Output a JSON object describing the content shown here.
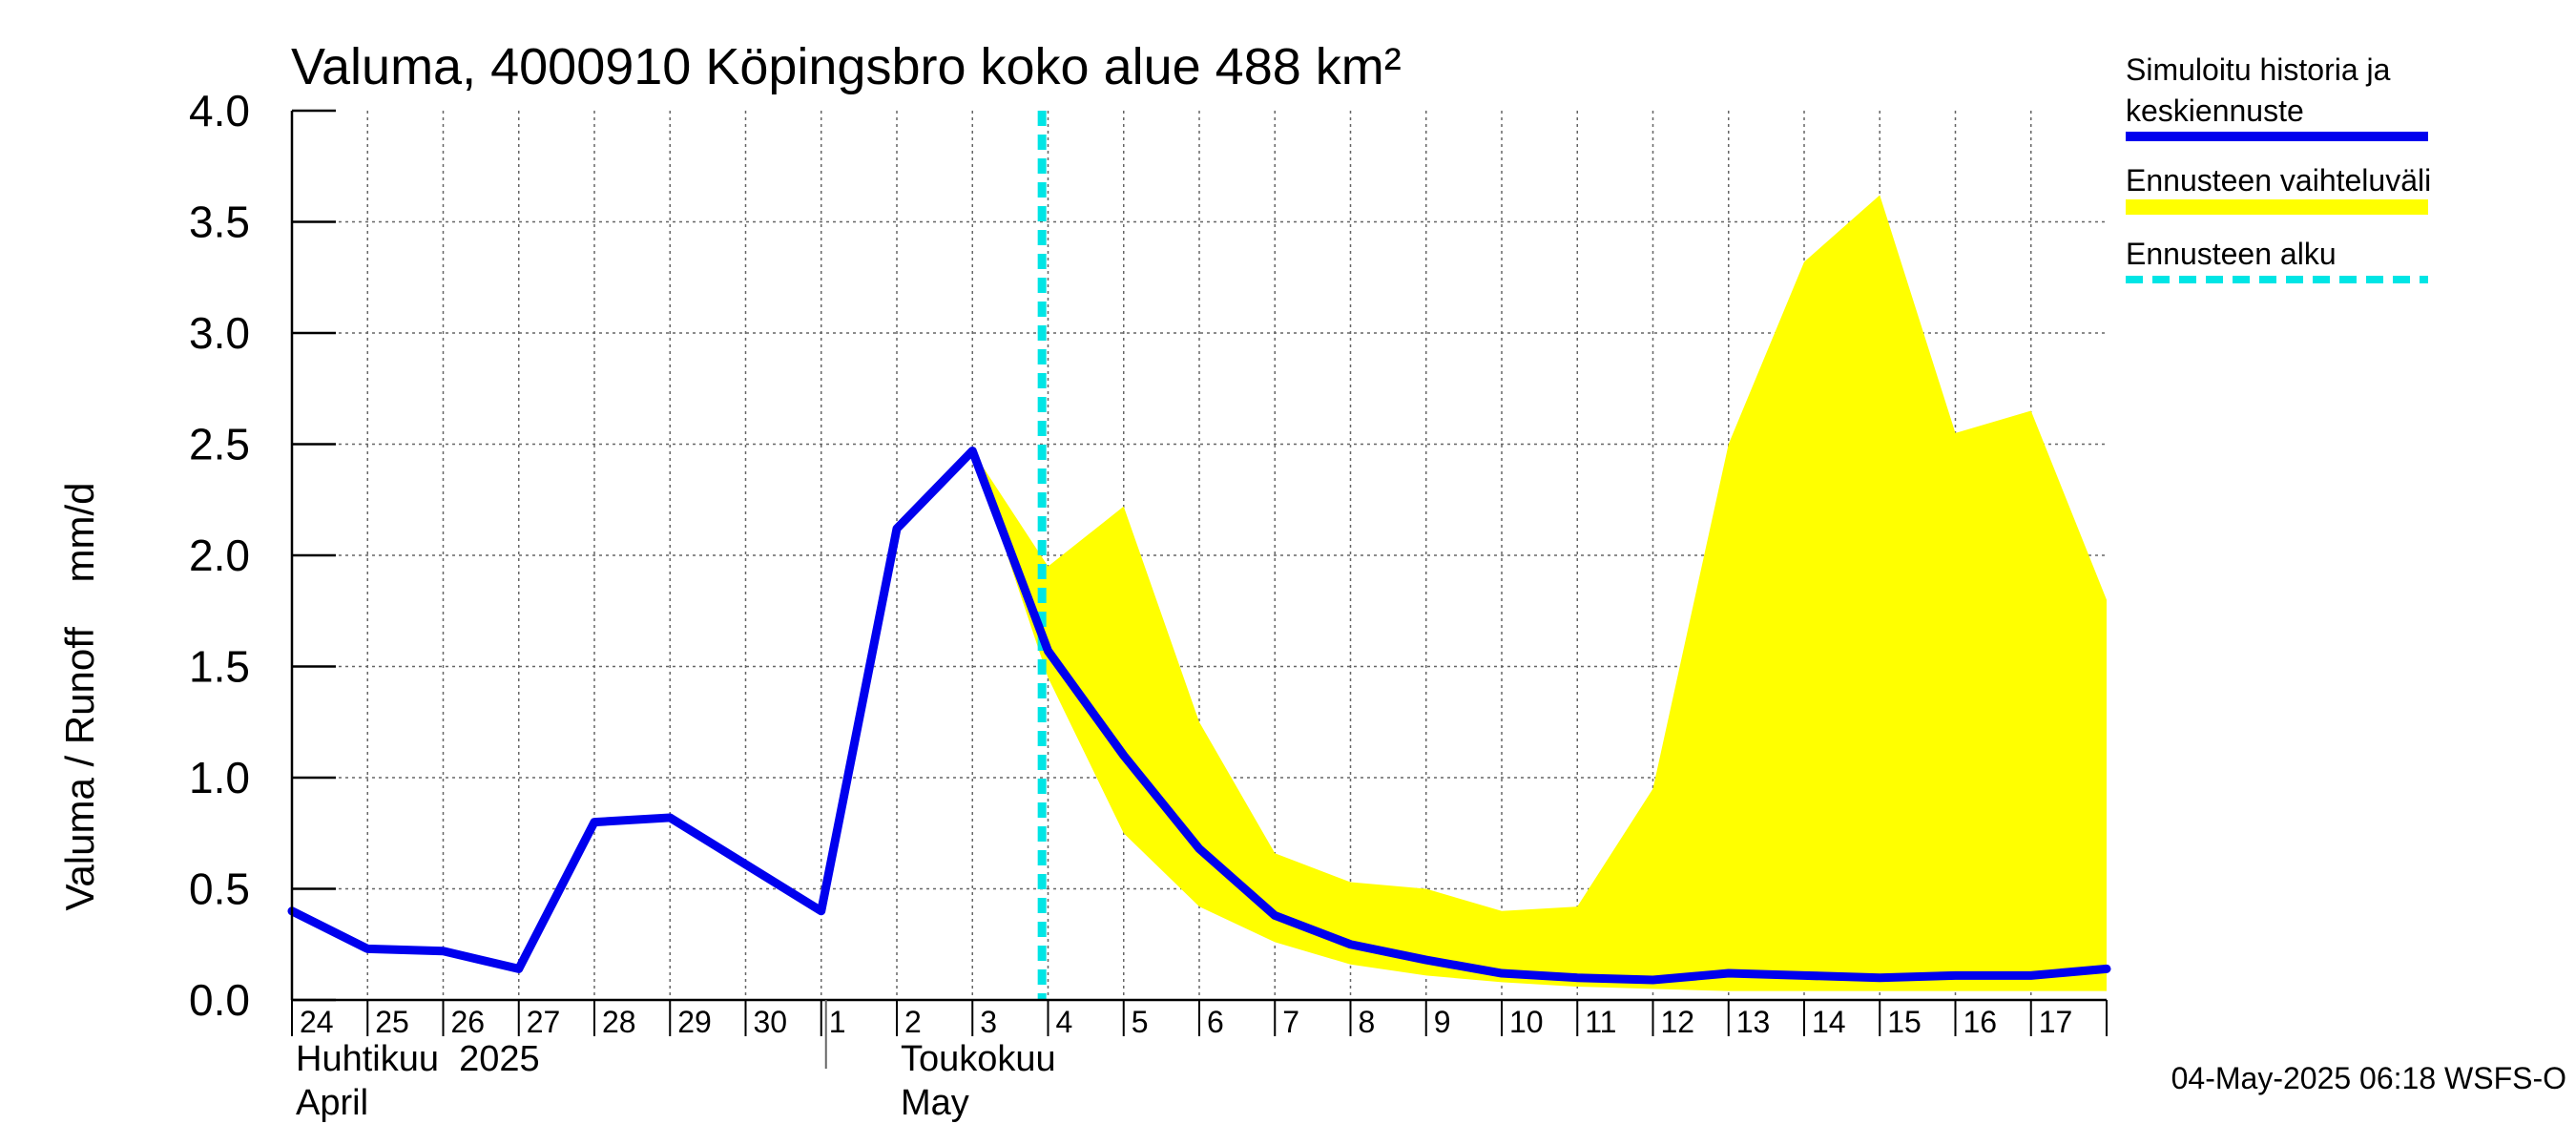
{
  "chart_data": {
    "type": "area",
    "title": "Valuma, 4000910 Köpingsbro koko alue 488 km²",
    "ylabel": "Valuma / Runoff    mm/d",
    "ylim": [
      0.0,
      4.0
    ],
    "yticks": [
      "0.0",
      "0.5",
      "1.0",
      "1.5",
      "2.0",
      "2.5",
      "3.0",
      "3.5",
      "4.0"
    ],
    "grid": true,
    "legend_position": "right",
    "x_tick_labels": [
      "24",
      "25",
      "26",
      "27",
      "28",
      "29",
      "30",
      "1",
      "2",
      "3",
      "4",
      "5",
      "6",
      "7",
      "8",
      "9",
      "10",
      "11",
      "12",
      "13",
      "14",
      "15",
      "16",
      "17"
    ],
    "month_labels": [
      {
        "line1": "Huhtikuu  2025",
        "line2": "April"
      },
      {
        "line1": "Toukokuu",
        "line2": "May"
      }
    ],
    "x_dates": [
      "2025-04-24",
      "2025-04-25",
      "2025-04-26",
      "2025-04-27",
      "2025-04-28",
      "2025-04-29",
      "2025-04-30",
      "2025-05-01",
      "2025-05-02",
      "2025-05-03",
      "2025-05-04",
      "2025-05-05",
      "2025-05-06",
      "2025-05-07",
      "2025-05-08",
      "2025-05-09",
      "2025-05-10",
      "2025-05-11",
      "2025-05-12",
      "2025-05-13",
      "2025-05-14",
      "2025-05-15",
      "2025-05-16",
      "2025-05-17",
      "2025-05-18"
    ],
    "series": [
      {
        "name": "Simuloitu historia ja keskiennuste",
        "color": "#0000ee",
        "values": [
          0.4,
          0.23,
          0.22,
          0.14,
          0.8,
          0.82,
          0.61,
          0.4,
          2.12,
          2.47,
          1.57,
          1.1,
          0.68,
          0.38,
          0.25,
          0.18,
          0.12,
          0.1,
          0.09,
          0.12,
          0.11,
          0.1,
          0.11,
          0.11,
          0.14
        ]
      },
      {
        "name": "Ennusteen vaihteluväli",
        "color": "#ffff00",
        "x_start_index": 9,
        "upper": [
          2.47,
          1.95,
          2.22,
          1.25,
          0.66,
          0.53,
          0.5,
          0.4,
          0.42,
          0.95,
          2.5,
          3.32,
          3.62,
          2.55,
          2.65,
          1.8
        ],
        "lower": [
          2.47,
          1.45,
          0.75,
          0.42,
          0.26,
          0.16,
          0.11,
          0.08,
          0.06,
          0.05,
          0.04,
          0.04,
          0.04,
          0.04,
          0.04,
          0.04
        ]
      }
    ],
    "forecast_start": {
      "name": "Ennusteen alku",
      "color": "#00e5e5",
      "x": 9.92
    }
  },
  "legend": {
    "items": [
      {
        "line1": "Simuloitu historia ja",
        "line2": "keskiennuste"
      },
      {
        "line1": "Ennusteen vaihteluväli",
        "line2": ""
      },
      {
        "line1": "Ennusteen alku",
        "line2": ""
      }
    ]
  },
  "footer": "04-May-2025 06:18 WSFS-O"
}
